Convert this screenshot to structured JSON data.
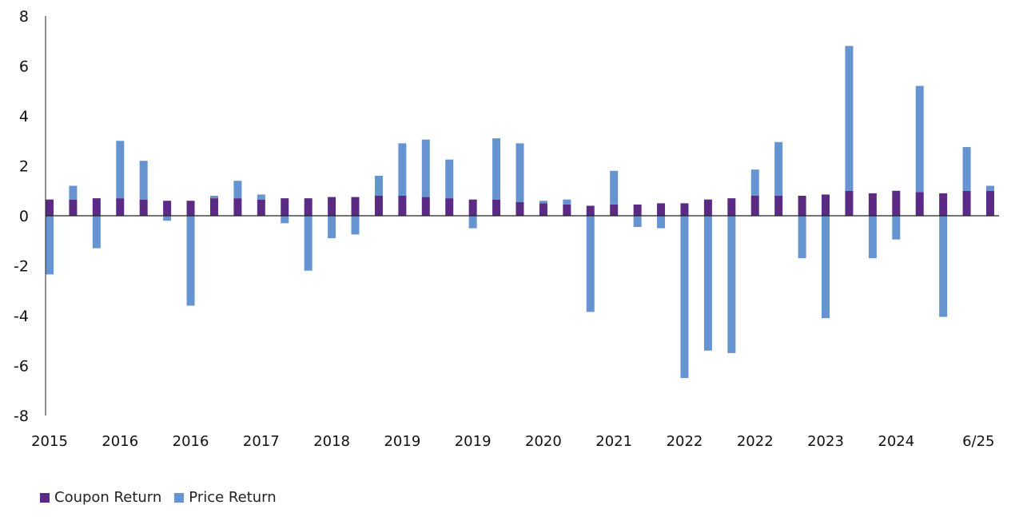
{
  "chart_data": {
    "type": "bar",
    "stacked": true,
    "title": "",
    "xlabel": "",
    "ylabel": "",
    "ylim": [
      -8,
      8
    ],
    "yticks": [
      8,
      6,
      4,
      2,
      0,
      -2,
      -4,
      -6,
      -8
    ],
    "grid": false,
    "legend_position": "bottom-left",
    "x_tick_labels": [
      "2015",
      "2016",
      "2016",
      "2017",
      "2018",
      "2019",
      "2019",
      "2020",
      "2021",
      "2022",
      "2022",
      "2023",
      "2024",
      "6/25"
    ],
    "series": [
      {
        "name": "Coupon Return",
        "color": "#5b2a84",
        "values": [
          0.65,
          0.65,
          0.7,
          0.7,
          0.65,
          0.6,
          0.6,
          0.7,
          0.7,
          0.65,
          0.7,
          0.7,
          0.75,
          0.75,
          0.8,
          0.8,
          0.75,
          0.7,
          0.65,
          0.65,
          0.55,
          0.5,
          0.45,
          0.4,
          0.45,
          0.45,
          0.5,
          0.5,
          0.65,
          0.7,
          0.8,
          0.8,
          0.8,
          0.85,
          1.0,
          0.9,
          1.0,
          0.95,
          0.9,
          1.0,
          1.0
        ]
      },
      {
        "name": "Price Return",
        "color": "#6594d0",
        "values": [
          -2.35,
          0.55,
          -1.3,
          2.3,
          1.55,
          -0.2,
          -3.6,
          0.1,
          0.7,
          0.2,
          -0.3,
          -2.2,
          -0.9,
          -0.75,
          0.8,
          2.1,
          2.3,
          1.55,
          -0.5,
          2.45,
          2.35,
          0.1,
          0.2,
          -3.85,
          1.35,
          -0.45,
          -0.5,
          -6.5,
          -5.4,
          -5.5,
          1.05,
          2.15,
          -1.7,
          -4.1,
          5.8,
          -1.7,
          -0.95,
          4.25,
          -4.05,
          1.75,
          0.2
        ]
      }
    ]
  }
}
